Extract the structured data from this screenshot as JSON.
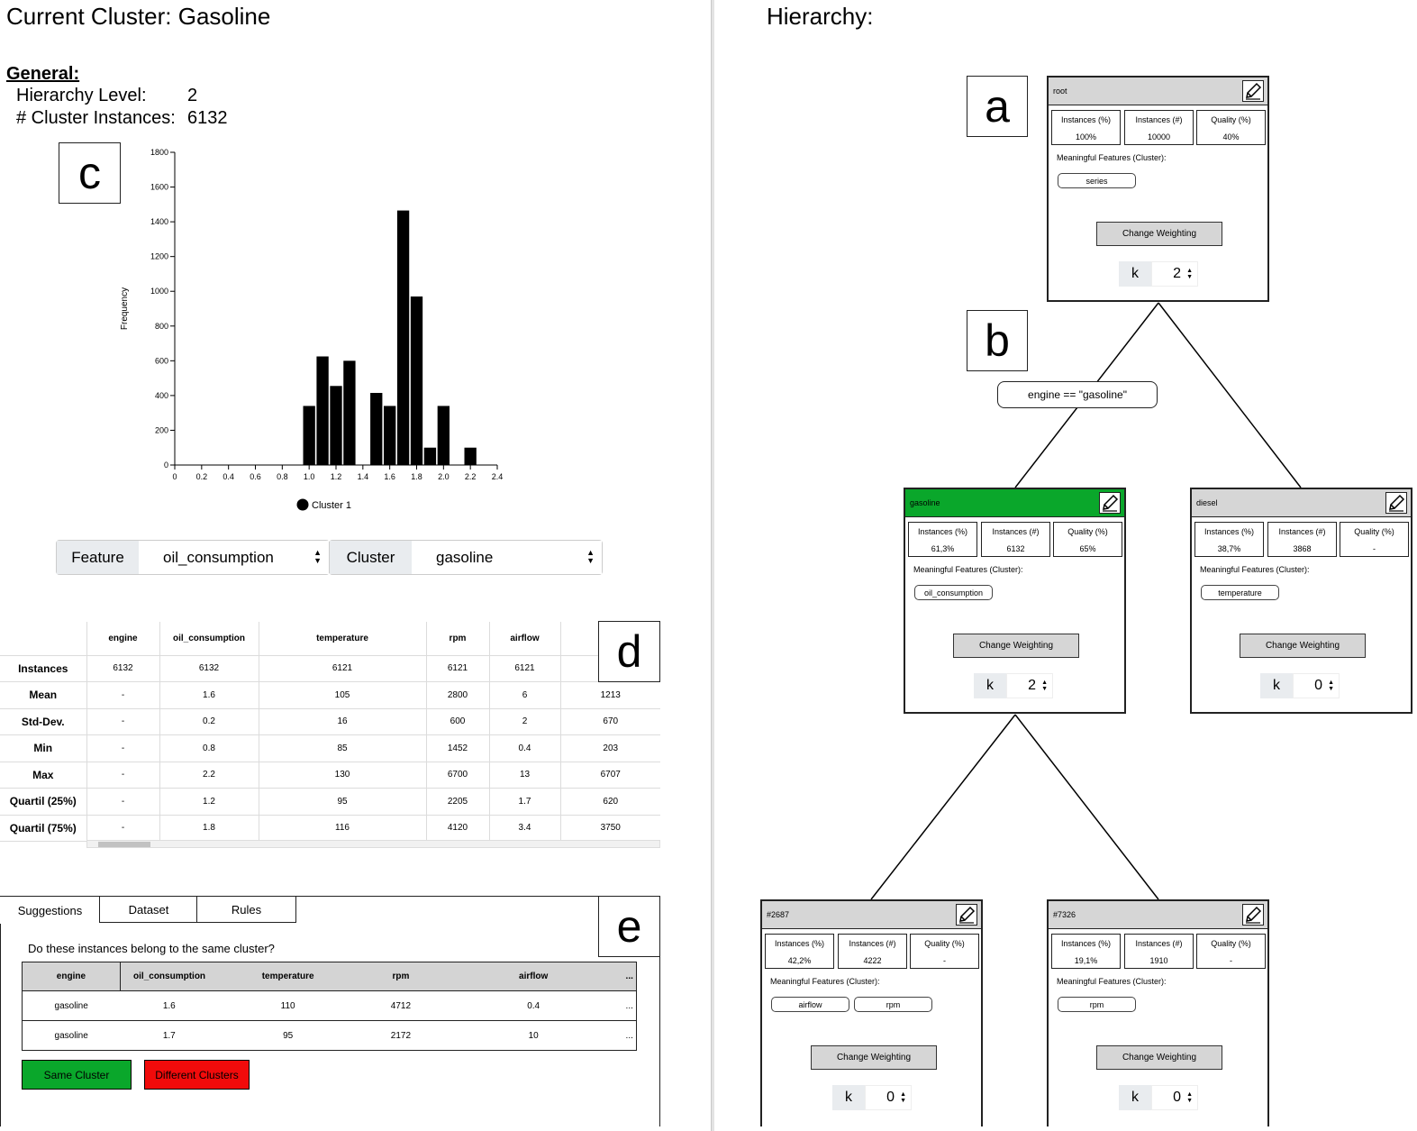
{
  "left": {
    "title": "Current Cluster: Gasoline",
    "general": {
      "heading": "General:",
      "level_label": "Hierarchy Level:",
      "level_value": "2",
      "instances_label": "# Cluster Instances:",
      "instances_value": "6132"
    },
    "markers": {
      "c": "c",
      "d": "d",
      "e": "e"
    },
    "controls": {
      "feature_label": "Feature",
      "feature_value": "oil_consumption",
      "cluster_label": "Cluster",
      "cluster_value": "gasoline"
    },
    "stats": {
      "columns": [
        "engine",
        "oil_consumption",
        "temperature",
        "rpm",
        "airflow",
        ""
      ],
      "rows": [
        {
          "label": "Instances",
          "values": [
            "6132",
            "6132",
            "6121",
            "6121",
            "6121",
            ""
          ]
        },
        {
          "label": "Mean",
          "values": [
            "-",
            "1.6",
            "105",
            "2800",
            "6",
            "1213"
          ]
        },
        {
          "label": "Std-Dev.",
          "values": [
            "-",
            "0.2",
            "16",
            "600",
            "2",
            "670"
          ]
        },
        {
          "label": "Min",
          "values": [
            "-",
            "0.8",
            "85",
            "1452",
            "0.4",
            "203"
          ]
        },
        {
          "label": "Max",
          "values": [
            "-",
            "2.2",
            "130",
            "6700",
            "13",
            "6707"
          ]
        },
        {
          "label": "Quartil (25%)",
          "values": [
            "-",
            "1.2",
            "95",
            "2205",
            "1.7",
            "620"
          ]
        },
        {
          "label": "Quartil (75%)",
          "values": [
            "-",
            "1.8",
            "116",
            "4120",
            "3.4",
            "3750"
          ]
        }
      ]
    },
    "tabs": [
      "Suggestions",
      "Dataset",
      "Rules"
    ],
    "question": "Do these instances belong to the same cluster?",
    "suggestions": {
      "columns": [
        "engine",
        "oil_consumption",
        "temperature",
        "rpm",
        "airflow",
        "..."
      ],
      "rows": [
        [
          "gasoline",
          "1.6",
          "110",
          "4712",
          "0.4",
          "..."
        ],
        [
          "gasoline",
          "1.7",
          "95",
          "2172",
          "10",
          "..."
        ]
      ]
    },
    "buttons": {
      "same": "Same Cluster",
      "different": "Different Clusters"
    },
    "colors": {
      "green": "#0aa72b",
      "red": "#f10b0b"
    }
  },
  "chart_data": {
    "type": "bar",
    "x": [
      1.0,
      1.1,
      1.2,
      1.3,
      1.5,
      1.6,
      1.7,
      1.8,
      1.9,
      2.0,
      2.2
    ],
    "values": [
      340,
      625,
      455,
      600,
      415,
      340,
      1465,
      970,
      100,
      340,
      100
    ],
    "ylabel": "Frequency",
    "xlim": [
      0,
      2.4
    ],
    "ylim": [
      0,
      1800
    ],
    "xticks": [
      "0",
      "0.2",
      "0.4",
      "0.6",
      "0.8",
      "1.0",
      "1.2",
      "1.4",
      "1.6",
      "1.8",
      "2.0",
      "2.2",
      "2.4"
    ],
    "yticks": [
      "0",
      "200",
      "400",
      "600",
      "800",
      "1000",
      "1200",
      "1400",
      "1600",
      "1800"
    ],
    "legend": "Cluster 1",
    "legend_position": "bottom",
    "bar_color": "#000000"
  },
  "right": {
    "title": "Hierarchy:",
    "markers": {
      "a": "a",
      "b": "b"
    },
    "condition": "engine == \"gasoline\"",
    "metric_labels": {
      "pct": "Instances (%)",
      "num": "Instances (#)",
      "quality": "Quality (%)"
    },
    "mf_label": "Meaningful Features (Cluster):",
    "cw_label": "Change Weighting",
    "k_label": "k",
    "nodes": {
      "root": {
        "name": "root",
        "pct": "100%",
        "num": "10000",
        "quality": "40%",
        "features": [
          "series"
        ],
        "k": "2"
      },
      "gasoline": {
        "name": "gasoline",
        "pct": "61,3%",
        "num": "6132",
        "quality": "65%",
        "features": [
          "oil_consumption"
        ],
        "k": "2"
      },
      "diesel": {
        "name": "diesel",
        "pct": "38,7%",
        "num": "3868",
        "quality": "-",
        "features": [
          "temperature"
        ],
        "k": "0"
      },
      "n2687": {
        "name": "#2687",
        "pct": "42,2%",
        "num": "4222",
        "quality": "-",
        "features": [
          "airflow",
          "rpm"
        ],
        "k": "0"
      },
      "n7326": {
        "name": "#7326",
        "pct": "19,1%",
        "num": "1910",
        "quality": "-",
        "features": [
          "rpm"
        ],
        "k": "0"
      }
    }
  }
}
